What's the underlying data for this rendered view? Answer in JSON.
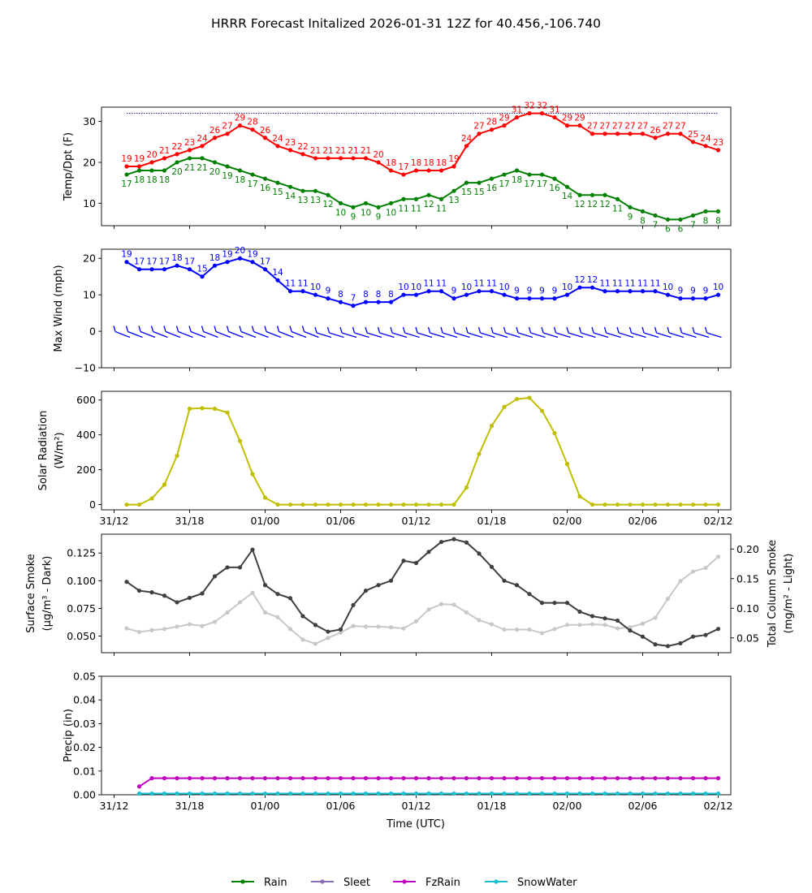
{
  "title": "HRRR Forecast Initalized 2026-01-31 12Z for 40.456,-106.740",
  "x_axis": {
    "label": "Time (UTC)",
    "ticks": [
      {
        "h": 0,
        "label": "31/12"
      },
      {
        "h": 6,
        "label": "31/18"
      },
      {
        "h": 12,
        "label": "01/00"
      },
      {
        "h": 18,
        "label": "01/06"
      },
      {
        "h": 24,
        "label": "01/12"
      },
      {
        "h": 30,
        "label": "01/18"
      },
      {
        "h": 36,
        "label": "02/00"
      },
      {
        "h": 42,
        "label": "02/06"
      },
      {
        "h": 48,
        "label": "02/12"
      }
    ]
  },
  "legend": [
    {
      "label": "Rain",
      "color": "#008000"
    },
    {
      "label": "Sleet",
      "color": "#8c6bb1"
    },
    {
      "label": "FzRain",
      "color": "#bf00bf"
    },
    {
      "label": "SnowWater",
      "color": "#17becf"
    }
  ],
  "chart_data": [
    {
      "type": "line",
      "ylabel": "Temp/Dpt (F)",
      "ylim": [
        4.5,
        33.5
      ],
      "yticks": [
        10,
        20,
        30
      ],
      "reference_line": 32,
      "x_start": 1,
      "x_step": 1,
      "series": [
        {
          "name": "Temp",
          "color": "#ff0000",
          "labels": "above",
          "values": [
            19,
            19,
            20,
            21,
            22,
            23,
            24,
            26,
            27,
            29,
            28,
            26,
            24,
            23,
            22,
            21,
            21,
            21,
            21,
            21,
            20,
            18,
            17,
            18,
            18,
            18,
            19,
            24,
            27,
            28,
            29,
            31,
            32,
            32,
            31,
            29,
            29,
            27,
            27,
            27,
            27,
            27,
            26,
            27,
            27,
            25,
            24,
            23
          ]
        },
        {
          "name": "Dewpoint",
          "color": "#008000",
          "labels": "below",
          "values": [
            17,
            18,
            18,
            18,
            20,
            21,
            21,
            20,
            19,
            18,
            17,
            16,
            15,
            14,
            13,
            13,
            12,
            10,
            9,
            10,
            9,
            10,
            11,
            11,
            12,
            11,
            13,
            15,
            15,
            16,
            17,
            18,
            17,
            17,
            16,
            14,
            12,
            12,
            12,
            11,
            9,
            8,
            7,
            6,
            6,
            7,
            8,
            8
          ]
        }
      ]
    },
    {
      "type": "line",
      "ylabel": "Max Wind (mph)",
      "ylim": [
        -10,
        22.5
      ],
      "yticks": [
        -10,
        0,
        10,
        20
      ],
      "x_start": 1,
      "x_step": 1,
      "series": [
        {
          "name": "Max Wind",
          "color": "#0000ff",
          "labels": "above",
          "values": [
            19,
            17,
            17,
            17,
            18,
            17,
            15,
            18,
            19,
            20,
            19,
            17,
            14,
            11,
            11,
            10,
            9,
            8,
            7,
            8,
            8,
            8,
            10,
            10,
            11,
            11,
            9,
            10,
            11,
            11,
            10,
            9,
            9,
            9,
            9,
            10,
            12,
            12,
            11,
            11,
            11,
            11,
            11,
            10,
            9,
            9,
            9,
            10
          ]
        }
      ],
      "barb_count": 48
    },
    {
      "type": "line",
      "ylabel": "Solar Radiation",
      "ylabel_units": "(W/m²)",
      "ylim": [
        -30,
        650
      ],
      "yticks": [
        0,
        200,
        400,
        600
      ],
      "x_start": 1,
      "x_step": 1,
      "series": [
        {
          "name": "Solar Radiation",
          "color": "#bfbf00",
          "values": [
            0,
            0,
            35,
            115,
            280,
            550,
            553,
            550,
            528,
            365,
            175,
            40,
            0,
            0,
            0,
            0,
            0,
            0,
            0,
            0,
            0,
            0,
            0,
            0,
            0,
            0,
            0,
            98,
            290,
            452,
            560,
            605,
            613,
            538,
            410,
            233,
            47,
            0,
            0,
            0,
            0,
            0,
            0,
            0,
            0,
            0,
            0,
            0
          ]
        }
      ]
    },
    {
      "type": "line",
      "ylabel": "Surface Smoke",
      "ylabel_units": "(μg/m³ - Dark)",
      "ylim": [
        0.035,
        0.142
      ],
      "yticks": [
        0.05,
        0.075,
        0.1,
        0.125
      ],
      "ytick_labels": [
        "0.050",
        "0.075",
        "0.100",
        "0.125"
      ],
      "y2label": "Total Column Smoke",
      "y2label_units": "(mg/m² - Light)",
      "y2lim": [
        0.025,
        0.225
      ],
      "y2ticks": [
        0.05,
        0.1,
        0.15,
        0.2
      ],
      "y2tick_labels": [
        "0.05",
        "0.10",
        "0.15",
        "0.20"
      ],
      "x_start": 1,
      "x_step": 1,
      "series": [
        {
          "name": "Surface Smoke",
          "color": "#404040",
          "axis": "left",
          "values": [
            0.099,
            0.091,
            0.0895,
            0.0865,
            0.0805,
            0.0845,
            0.0885,
            0.104,
            0.112,
            0.112,
            0.128,
            0.096,
            0.088,
            0.0842,
            0.068,
            0.06,
            0.054,
            0.056,
            0.078,
            0.091,
            0.096,
            0.1,
            0.118,
            0.116,
            0.126,
            0.135,
            0.1375,
            0.1345,
            0.1245,
            0.1125,
            0.1,
            0.096,
            0.088,
            0.08,
            0.08,
            0.08,
            0.072,
            0.068,
            0.066,
            0.064,
            0.055,
            0.0495,
            0.0425,
            0.041,
            0.0435,
            0.0495,
            0.051,
            0.0565
          ]
        },
        {
          "name": "Total Column Smoke",
          "color": "#c8c8c8",
          "axis": "right",
          "values": [
            0.066,
            0.06,
            0.063,
            0.065,
            0.069,
            0.073,
            0.07,
            0.077,
            0.093,
            0.11,
            0.126,
            0.093,
            0.085,
            0.065,
            0.047,
            0.04,
            0.05,
            0.059,
            0.07,
            0.069,
            0.069,
            0.068,
            0.066,
            0.078,
            0.098,
            0.107,
            0.106,
            0.093,
            0.08,
            0.073,
            0.064,
            0.064,
            0.064,
            0.058,
            0.065,
            0.072,
            0.072,
            0.073,
            0.072,
            0.066,
            0.068,
            0.074,
            0.084,
            0.116,
            0.146,
            0.162,
            0.168,
            0.187
          ]
        }
      ]
    },
    {
      "type": "line",
      "ylabel": "Precip (in)",
      "ylim": [
        0,
        0.05
      ],
      "yticks": [
        0,
        0.01,
        0.02,
        0.03,
        0.04,
        0.05
      ],
      "ytick_labels": [
        "0.00",
        "0.01",
        "0.02",
        "0.03",
        "0.04",
        "0.05"
      ],
      "x_start": 2,
      "x_step": 1,
      "series": [
        {
          "name": "FzRain",
          "color": "#bf00bf",
          "values": [
            0.0035,
            0.007,
            0.007,
            0.007,
            0.007,
            0.007,
            0.007,
            0.007,
            0.007,
            0.007,
            0.007,
            0.007,
            0.007,
            0.007,
            0.007,
            0.007,
            0.007,
            0.007,
            0.007,
            0.007,
            0.007,
            0.007,
            0.007,
            0.007,
            0.007,
            0.007,
            0.007,
            0.007,
            0.007,
            0.007,
            0.007,
            0.007,
            0.007,
            0.007,
            0.007,
            0.007,
            0.007,
            0.007,
            0.007,
            0.007,
            0.007,
            0.007,
            0.007,
            0.007,
            0.007,
            0.007,
            0.007
          ]
        },
        {
          "name": "SnowWater",
          "color": "#17becf",
          "values": [
            0.0005,
            0.0005,
            0.0005,
            0.0005,
            0.0005,
            0.0005,
            0.0005,
            0.0005,
            0.0005,
            0.0005,
            0.0005,
            0.0005,
            0.0005,
            0.0005,
            0.0005,
            0.0005,
            0.0005,
            0.0005,
            0.0005,
            0.0005,
            0.0005,
            0.0005,
            0.0005,
            0.0005,
            0.0005,
            0.0005,
            0.0005,
            0.0005,
            0.0005,
            0.0005,
            0.0005,
            0.0005,
            0.0005,
            0.0005,
            0.0005,
            0.0005,
            0.0005,
            0.0005,
            0.0005,
            0.0005,
            0.0005,
            0.0005,
            0.0005,
            0.0005,
            0.0005,
            0.0005,
            0.0005
          ]
        }
      ]
    }
  ]
}
